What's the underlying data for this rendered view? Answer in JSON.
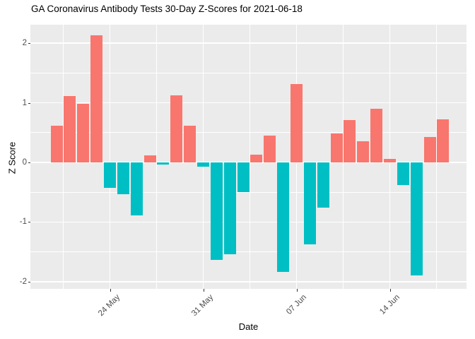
{
  "chart_data": {
    "type": "bar",
    "title": "GA Coronavirus Antibody Tests 30-Day Z-Scores for 2021-06-18",
    "xlabel": "Date",
    "ylabel": "Z Score",
    "x": [
      "2021-05-20",
      "2021-05-21",
      "2021-05-22",
      "2021-05-23",
      "2021-05-24",
      "2021-05-25",
      "2021-05-26",
      "2021-05-27",
      "2021-05-28",
      "2021-05-29",
      "2021-05-30",
      "2021-05-31",
      "2021-06-01",
      "2021-06-02",
      "2021-06-03",
      "2021-06-04",
      "2021-06-05",
      "2021-06-06",
      "2021-06-07",
      "2021-06-08",
      "2021-06-09",
      "2021-06-10",
      "2021-06-11",
      "2021-06-12",
      "2021-06-13",
      "2021-06-14",
      "2021-06-15",
      "2021-06-16",
      "2021-06-17",
      "2021-06-18"
    ],
    "values": [
      0.62,
      1.11,
      0.98,
      2.13,
      -0.43,
      -0.53,
      -0.89,
      0.12,
      -0.03,
      1.13,
      0.62,
      -0.07,
      -1.63,
      -1.54,
      -0.5,
      0.13,
      0.45,
      -1.84,
      1.31,
      -1.37,
      -0.76,
      0.48,
      0.71,
      0.35,
      0.9,
      0.06,
      -0.38,
      -1.9,
      0.43,
      0.72
    ],
    "ylim": [
      -2.12,
      2.31
    ],
    "yticks_major": [
      2,
      1,
      0,
      -1,
      -2
    ],
    "ytick_labels": [
      "2",
      "1",
      "0",
      "-1",
      "-2"
    ],
    "yticks_minor": [
      1.5,
      0.5,
      -0.5,
      -1.5
    ],
    "xticks": [
      {
        "label": "24 May",
        "index": 4
      },
      {
        "label": "31 May",
        "index": 11
      },
      {
        "label": "07 Jun",
        "index": 18
      },
      {
        "label": "14 Jun",
        "index": 25
      }
    ],
    "xminor_indices": [
      0.5,
      7.5,
      14.5,
      21.5,
      28.5
    ],
    "grid": true,
    "legend_position": "none",
    "positive_color": "#F8766D",
    "negative_color": "#00BFC4",
    "panel_background": "#EBEBEB",
    "grid_color": "#FFFFFF",
    "axis_text_color": "#4D4D4D"
  }
}
